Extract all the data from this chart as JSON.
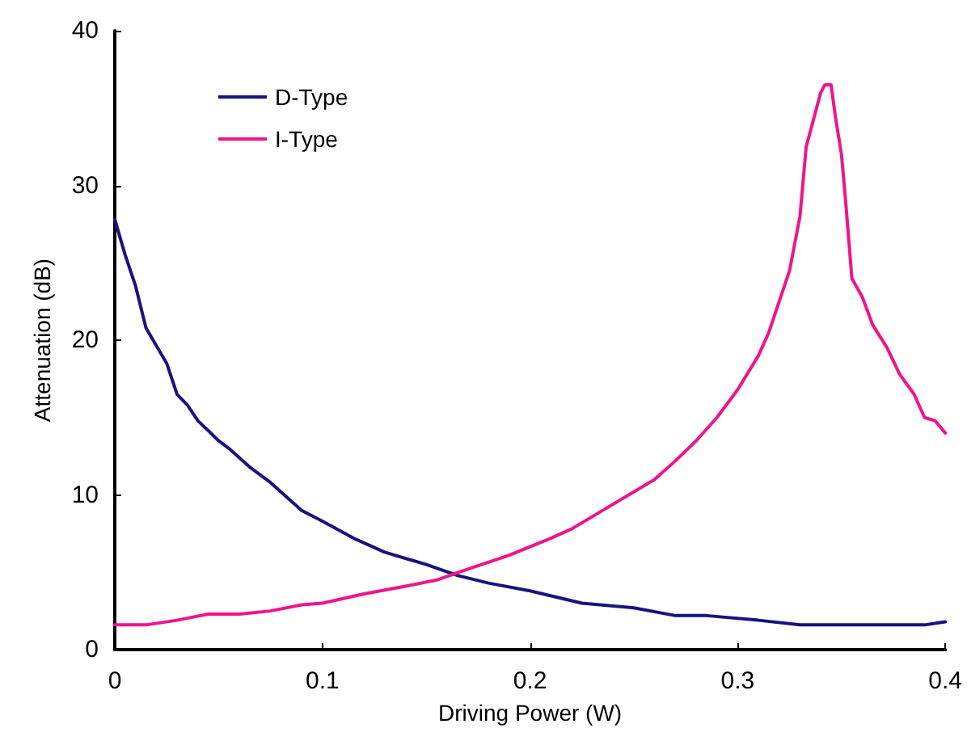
{
  "chart_data": {
    "type": "line",
    "xlabel": "Driving Power (W)",
    "ylabel": "Attenuation (dB)",
    "xlim": [
      0,
      0.4
    ],
    "xticks": [
      0,
      0.1,
      0.2,
      0.3,
      0.4
    ],
    "ylim": [
      0,
      40
    ],
    "yticks": [
      0,
      10,
      20,
      30,
      40
    ],
    "grid": false,
    "legend": "top left",
    "marker": "none",
    "line_style": "solid",
    "series": [
      {
        "name": "D-Type",
        "color": "#1a1280",
        "x": [
          0,
          0.005,
          0.01,
          0.015,
          0.025,
          0.03,
          0.035,
          0.04,
          0.05,
          0.055,
          0.065,
          0.075,
          0.09,
          0.1,
          0.115,
          0.13,
          0.15,
          0.165,
          0.18,
          0.2,
          0.225,
          0.25,
          0.27,
          0.285,
          0.31,
          0.33,
          0.39,
          0.4
        ],
        "values": [
          27.8,
          25.5,
          23.5,
          20.8,
          18.5,
          16.5,
          15.8,
          14.8,
          13.5,
          13,
          11.8,
          10.8,
          9,
          8.3,
          7.2,
          6.3,
          5.5,
          4.8,
          4.3,
          3.8,
          3,
          2.7,
          2.2,
          2.2,
          1.9,
          1.6,
          1.6,
          1.8
        ]
      },
      {
        "name": "I-Type",
        "color": "#f0148c",
        "x": [
          0,
          0.015,
          0.03,
          0.045,
          0.06,
          0.075,
          0.09,
          0.1,
          0.12,
          0.14,
          0.155,
          0.17,
          0.19,
          0.21,
          0.22,
          0.235,
          0.25,
          0.26,
          0.27,
          0.28,
          0.29,
          0.3,
          0.31,
          0.315,
          0.32,
          0.325,
          0.33,
          0.333,
          0.336,
          0.34,
          0.342,
          0.345,
          0.347,
          0.35,
          0.352,
          0.355,
          0.36,
          0.365,
          0.372,
          0.378,
          0.385,
          0.39,
          0.395,
          0.4
        ],
        "values": [
          1.6,
          1.6,
          1.9,
          2.3,
          2.3,
          2.5,
          2.9,
          3,
          3.6,
          4.1,
          4.5,
          5.2,
          6.1,
          7.2,
          7.8,
          9,
          10.2,
          11,
          12.2,
          13.5,
          15,
          16.8,
          19,
          20.5,
          22.5,
          24.5,
          28,
          32.5,
          34,
          36,
          36.5,
          36.5,
          34.5,
          32,
          29,
          24,
          22.8,
          21,
          19.5,
          17.8,
          16.5,
          15,
          14.8,
          14
        ]
      }
    ]
  }
}
